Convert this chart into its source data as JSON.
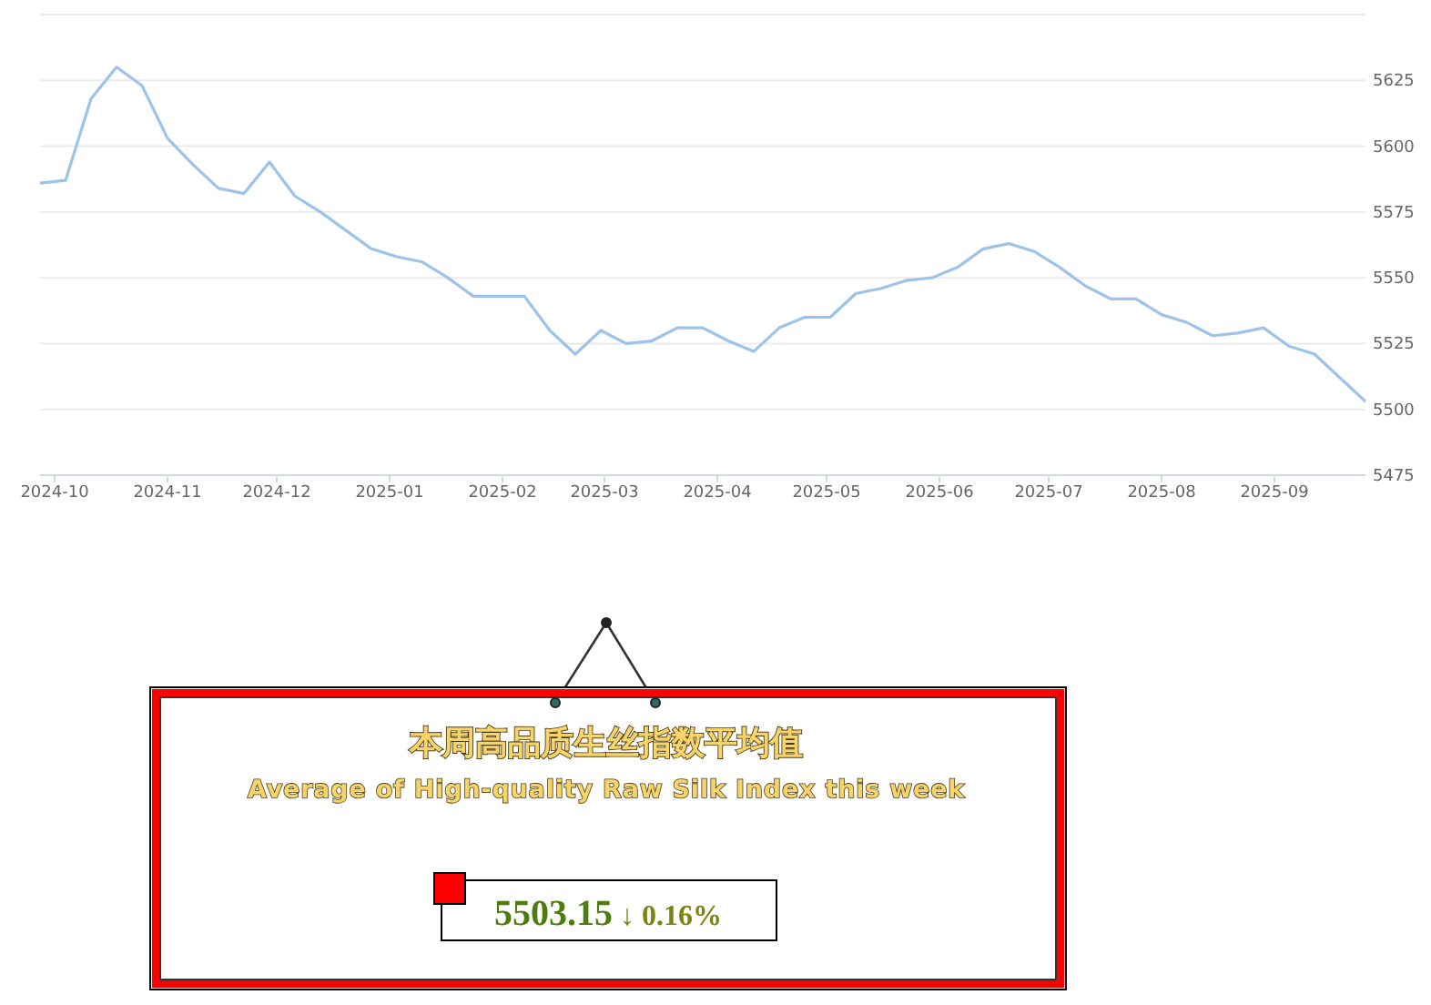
{
  "chart_data": [
    {
      "type": "line",
      "color": "#9ec3ea",
      "grid": "y",
      "x": [
        "2024-09-27",
        "2024-10-04",
        "2024-10-11",
        "2024-10-18",
        "2024-10-25",
        "2024-11-01",
        "2024-11-08",
        "2024-11-15",
        "2024-11-22",
        "2024-11-29",
        "2024-12-06",
        "2024-12-13",
        "2024-12-20",
        "2024-12-27",
        "2025-01-03",
        "2025-01-10",
        "2025-01-17",
        "2025-01-24",
        "2025-01-31",
        "2025-02-07",
        "2025-02-14",
        "2025-02-21",
        "2025-02-28",
        "2025-03-07",
        "2025-03-14",
        "2025-03-21",
        "2025-03-28",
        "2025-04-04",
        "2025-04-11",
        "2025-04-18",
        "2025-04-25",
        "2025-05-02",
        "2025-05-09",
        "2025-05-16",
        "2025-05-23",
        "2025-05-30",
        "2025-06-06",
        "2025-06-13",
        "2025-06-20",
        "2025-06-27",
        "2025-07-04",
        "2025-07-11",
        "2025-07-18",
        "2025-07-25",
        "2025-08-01",
        "2025-08-08",
        "2025-08-15",
        "2025-08-22",
        "2025-08-29",
        "2025-09-05",
        "2025-09-12",
        "2025-09-19",
        "2025-09-26"
      ],
      "values": [
        5586,
        5587,
        5618,
        5630,
        5623,
        5603,
        5593,
        5584,
        5582,
        5594,
        5581,
        5575,
        5568,
        5561,
        5558,
        5556,
        5550,
        5543,
        5543,
        5543,
        5530,
        5521,
        5530,
        5525,
        5526,
        5531,
        5531,
        5526,
        5522,
        5531,
        5535,
        5535,
        5544,
        5546,
        5549,
        5550,
        5554,
        5561,
        5563,
        5560,
        5554,
        5547,
        5542,
        5542,
        5536,
        5533,
        5528,
        5529,
        5531,
        5524,
        5521,
        5512,
        5503
      ],
      "xlim": [
        "2024-09-27",
        "2025-09-26"
      ],
      "xticks": [
        "2024-10",
        "2024-11",
        "2024-12",
        "2025-01",
        "2025-02",
        "2025-03",
        "2025-04",
        "2025-05",
        "2025-06",
        "2025-07",
        "2025-08",
        "2025-09"
      ],
      "ylim": [
        5475,
        5650
      ],
      "yticks": [
        5475,
        5500,
        5525,
        5550,
        5575,
        5600,
        5625,
        {
          "value": 5650,
          "label": null
        }
      ]
    },
    {
      "type": "other",
      "title": "本周高品质生丝指数平均值",
      "subtitle": "Average of High-quality Raw Silk Index this week",
      "annotations": [
        "5503.15",
        "↓ 0.16%"
      ]
    }
  ]
}
